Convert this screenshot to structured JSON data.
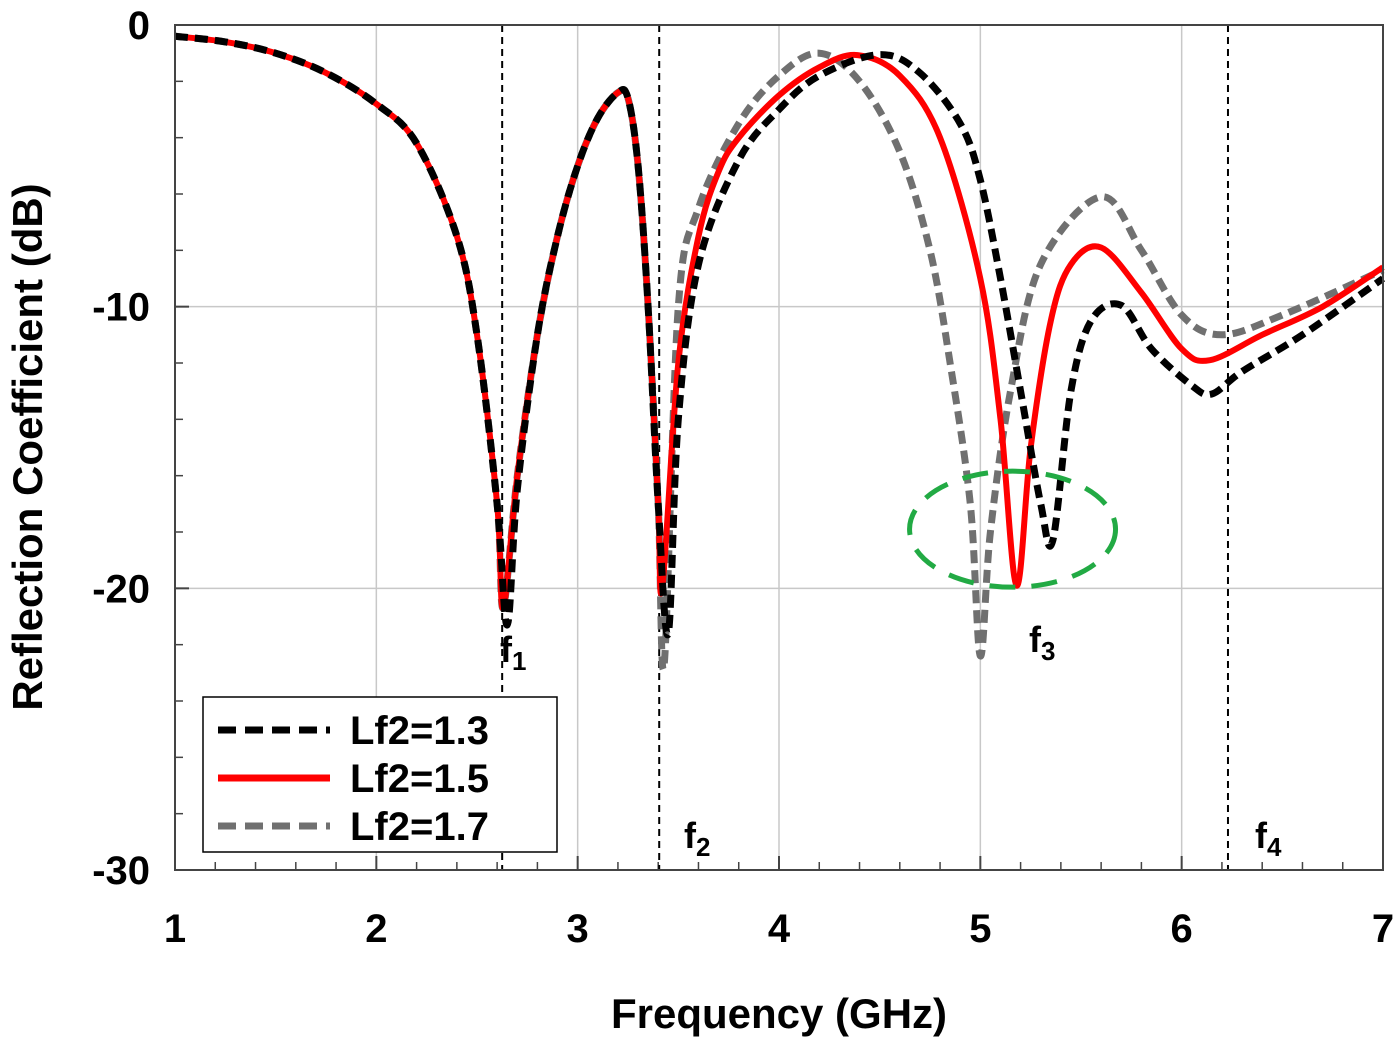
{
  "chart_data": {
    "type": "line",
    "title": "",
    "xlabel": "Frequency (GHz)",
    "ylabel": "Reflection Coefficient (dB)",
    "xlim": [
      1,
      7
    ],
    "ylim": [
      -30,
      0
    ],
    "xticks": [
      "1",
      "2",
      "3",
      "4",
      "5",
      "6",
      "7"
    ],
    "yticks": [
      "0",
      "-10",
      "-20",
      "-30"
    ],
    "grid": true,
    "legend_placement": "bottom-left",
    "series": [
      {
        "name": "Lf2=1.3",
        "color": "#000000",
        "style": "dashed",
        "x": [
          1.0,
          1.25,
          1.5,
          1.75,
          2.0,
          2.2,
          2.4,
          2.5,
          2.6,
          2.65,
          2.7,
          2.8,
          2.9,
          3.0,
          3.1,
          3.2,
          3.25,
          3.3,
          3.35,
          3.4,
          3.45,
          3.5,
          3.6,
          3.8,
          4.0,
          4.2,
          4.5,
          4.7,
          4.9,
          5.0,
          5.1,
          5.2,
          5.3,
          5.36,
          5.45,
          5.55,
          5.7,
          5.85,
          6.05,
          6.15,
          6.3,
          6.6,
          7.0
        ],
        "y": [
          -0.4,
          -0.6,
          -1.0,
          -1.7,
          -2.8,
          -4.2,
          -7.5,
          -11,
          -17,
          -21.3,
          -16.5,
          -11,
          -7.5,
          -5,
          -3.3,
          -2.4,
          -2.6,
          -5,
          -10,
          -17,
          -21.6,
          -14,
          -8.5,
          -4.8,
          -3,
          -1.8,
          -1.05,
          -1.7,
          -3.5,
          -5.5,
          -9,
          -13,
          -17,
          -18.3,
          -13,
          -10.5,
          -9.95,
          -11.5,
          -12.8,
          -13.1,
          -12.3,
          -11,
          -9
        ]
      },
      {
        "name": "Lf2=1.5",
        "color": "#ff0000",
        "style": "solid",
        "x": [
          1.0,
          1.25,
          1.5,
          1.75,
          2.0,
          2.2,
          2.4,
          2.5,
          2.6,
          2.63,
          2.7,
          2.8,
          2.9,
          3.0,
          3.1,
          3.2,
          3.25,
          3.3,
          3.35,
          3.4,
          3.42,
          3.5,
          3.6,
          3.7,
          3.8,
          4.0,
          4.2,
          4.39,
          4.6,
          4.8,
          5.0,
          5.1,
          5.18,
          5.25,
          5.35,
          5.45,
          5.6,
          5.8,
          6.0,
          6.14,
          6.4,
          6.7,
          7.0
        ],
        "y": [
          -0.4,
          -0.6,
          -1.0,
          -1.7,
          -2.8,
          -4.2,
          -7.5,
          -11,
          -17,
          -20.7,
          -16,
          -11,
          -7.5,
          -5,
          -3.3,
          -2.4,
          -2.6,
          -5,
          -10,
          -17,
          -20,
          -12,
          -7.5,
          -5.2,
          -4,
          -2.5,
          -1.5,
          -1.07,
          -1.8,
          -4,
          -9,
          -14,
          -19.9,
          -15,
          -10.5,
          -8.5,
          -7.9,
          -9.5,
          -11.5,
          -11.9,
          -11,
          -10,
          -8.6
        ]
      },
      {
        "name": "Lf2=1.7",
        "color": "#707070",
        "style": "dashed",
        "x": [
          1.0,
          1.25,
          1.5,
          1.75,
          2.0,
          2.2,
          2.4,
          2.5,
          2.6,
          2.63,
          2.7,
          2.8,
          2.9,
          3.0,
          3.1,
          3.2,
          3.25,
          3.3,
          3.35,
          3.4,
          3.43,
          3.5,
          3.6,
          3.8,
          4.0,
          4.2,
          4.4,
          4.6,
          4.75,
          4.85,
          4.95,
          5.0,
          5.05,
          5.15,
          5.3,
          5.6,
          5.8,
          6.0,
          6.2,
          6.5,
          7.0
        ],
        "y": [
          -0.4,
          -0.6,
          -1.0,
          -1.7,
          -2.8,
          -4.2,
          -7.5,
          -11,
          -17,
          -20.7,
          -16,
          -11,
          -7.5,
          -5,
          -3.3,
          -2.4,
          -2.6,
          -5,
          -10,
          -17,
          -22.7,
          -10,
          -6.5,
          -3.5,
          -1.8,
          -1.0,
          -2,
          -4.5,
          -8,
          -12,
          -17,
          -22.4,
          -18,
          -13,
          -8.5,
          -6.1,
          -8,
          -10.3,
          -11,
          -10.3,
          -8.7
        ]
      }
    ],
    "markers": [
      {
        "x": 2.625,
        "label": "f",
        "sub": "1"
      },
      {
        "x": 3.405,
        "label": "f",
        "sub": "2"
      },
      {
        "label": "f",
        "sub": "3"
      },
      {
        "x": 6.23,
        "label": "f",
        "sub": "4"
      }
    ],
    "highlight_ellipse": {
      "center_x": 5.16,
      "center_y": -17.9,
      "color": "#22aa44"
    }
  }
}
